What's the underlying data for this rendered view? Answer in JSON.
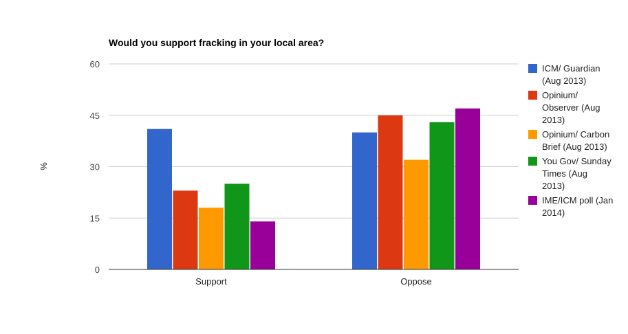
{
  "chart_data": {
    "type": "bar",
    "title": "Would you support fracking in your local area?",
    "xlabel": "",
    "ylabel": "%",
    "ylim": [
      0,
      60
    ],
    "yticks": [
      0,
      15,
      30,
      45,
      60
    ],
    "grid": true,
    "legend_position": "right",
    "categories": [
      "Support",
      "Oppose"
    ],
    "series": [
      {
        "name": "ICM/ Guardian (Aug 2013)",
        "color": "#3366cc",
        "values": [
          41,
          40
        ],
        "legend_lines": [
          "ICM/ Guardian",
          "(Aug 2013)"
        ]
      },
      {
        "name": "Opinium/ Observer (Aug 2013)",
        "color": "#dc3912",
        "values": [
          23,
          45
        ],
        "legend_lines": [
          "Opinium/",
          "Observer (Aug",
          "2013)"
        ]
      },
      {
        "name": "Opinium/ Carbon Brief (Aug 2013)",
        "color": "#ff9900",
        "values": [
          18,
          32
        ],
        "legend_lines": [
          "Opinium/ Carbon",
          "Brief (Aug 2013)"
        ]
      },
      {
        "name": "You Gov/ Sunday Times (Aug 2013)",
        "color": "#109618",
        "values": [
          25,
          43
        ],
        "legend_lines": [
          "You Gov/ Sunday",
          "Times (Aug",
          "2013)"
        ]
      },
      {
        "name": "IME/ICM poll (Jan 2014)",
        "color": "#990099",
        "values": [
          14,
          47
        ],
        "legend_lines": [
          "IME/ICM poll (Jan",
          "2014)"
        ]
      }
    ]
  }
}
